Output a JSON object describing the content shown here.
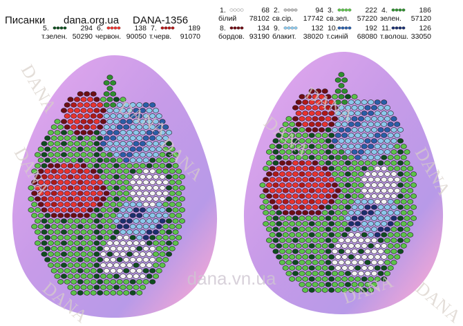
{
  "header": {
    "title": "Писанки",
    "site": "dana.org.ua",
    "code": "DANA-1356"
  },
  "legend": [
    {
      "number": "1.",
      "count": 68,
      "name": "білий",
      "code": "78102",
      "color": "#f4f4f4"
    },
    {
      "number": "2.",
      "count": 94,
      "name": "св.сір.",
      "code": "17742",
      "color": "#bdbdbd"
    },
    {
      "number": "3.",
      "count": 222,
      "name": "св.зел.",
      "code": "57220",
      "color": "#5cc24a"
    },
    {
      "number": "4.",
      "count": 186,
      "name": "зелен.",
      "code": "57120",
      "color": "#2f8f2f"
    },
    {
      "number": "5.",
      "count": 294,
      "name": "т.зелен.",
      "code": "50290",
      "color": "#0f4d1f"
    },
    {
      "number": "6.",
      "count": 138,
      "name": "червон.",
      "code": "90050",
      "color": "#e8322e"
    },
    {
      "number": "7.",
      "count": 189,
      "name": "т.черв.",
      "code": "91070",
      "color": "#b01818"
    },
    {
      "number": "8.",
      "count": 134,
      "name": "бордов.",
      "code": "93190",
      "color": "#6e0d14"
    },
    {
      "number": "9.",
      "count": 132,
      "name": "блакит.",
      "code": "38020",
      "color": "#8cc8ec"
    },
    {
      "number": "10.",
      "count": 192,
      "name": "т.синій",
      "code": "68080",
      "color": "#2a5ea8"
    },
    {
      "number": "11.",
      "count": 126,
      "name": "т.волош.",
      "code": "33050",
      "color": "#1b2f6e"
    }
  ],
  "watermark": {
    "brand": "DANA",
    "site": "dana.vn.ua"
  }
}
